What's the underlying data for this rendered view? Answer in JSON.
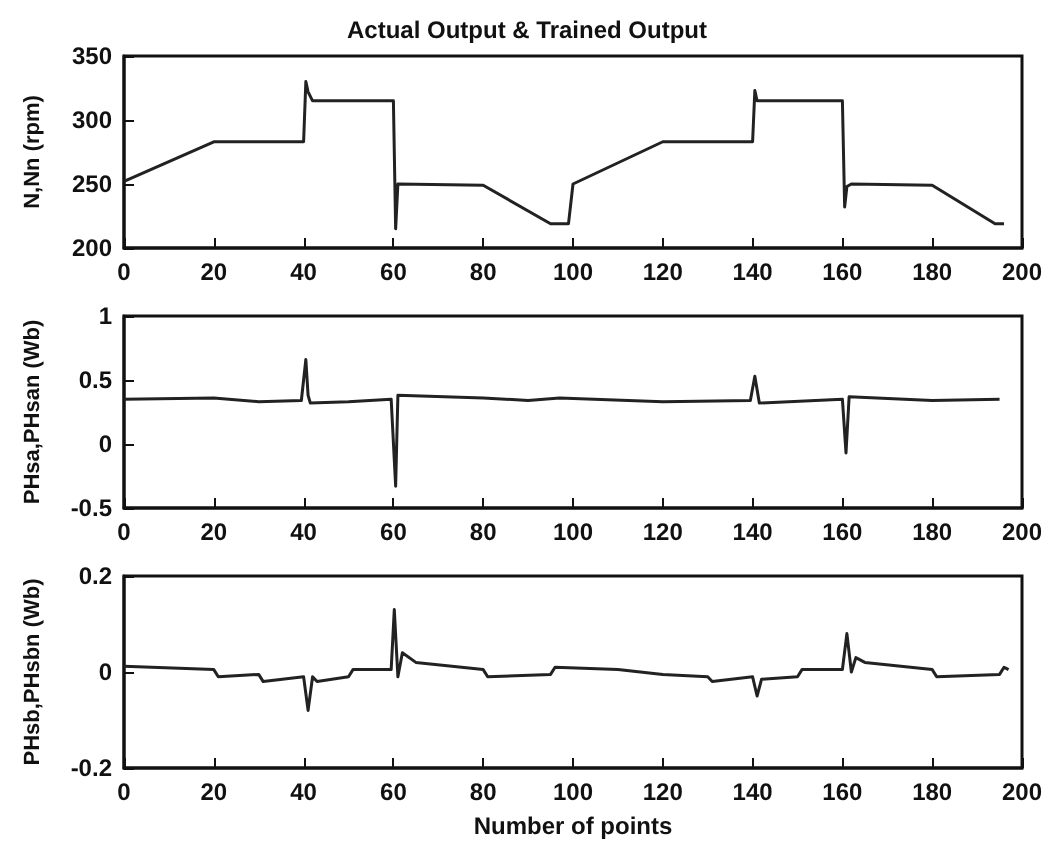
{
  "chart_data": [
    {
      "type": "line",
      "title": "Actual Output & Trained Output",
      "ylabel": "N,Nn (rpm)",
      "color": "#222222",
      "grid": false,
      "xlim": [
        0,
        200
      ],
      "xticks": [
        0,
        20,
        40,
        60,
        80,
        100,
        120,
        140,
        160,
        180,
        200
      ],
      "ylim": [
        200,
        350
      ],
      "yticks": [
        200,
        250,
        300,
        350
      ],
      "x": [
        0,
        20,
        40,
        40.5,
        41,
        42,
        60,
        60.5,
        61,
        80,
        95,
        99,
        100,
        120,
        140,
        140.5,
        141,
        160,
        160.5,
        161,
        162,
        180,
        194,
        196
      ],
      "values": [
        252,
        283,
        283,
        330,
        322,
        315,
        315,
        215,
        250,
        249,
        219,
        219,
        250,
        283,
        283,
        323,
        315,
        315,
        232,
        248,
        250,
        249,
        219,
        219
      ]
    },
    {
      "type": "line",
      "ylabel": "PHsa,PHsan (Wb)",
      "color": "#222222",
      "grid": false,
      "xlim": [
        0,
        200
      ],
      "xticks": [
        0,
        20,
        40,
        60,
        80,
        100,
        120,
        140,
        160,
        180,
        200
      ],
      "ylim": [
        -0.5,
        1
      ],
      "yticks": [
        -0.5,
        0,
        0.5,
        1
      ],
      "x": [
        0,
        20,
        30,
        39.5,
        40.5,
        41,
        41.5,
        50,
        59.5,
        60.5,
        61,
        80,
        90,
        97,
        120,
        139.5,
        140.5,
        141.5,
        160,
        160.8,
        161.5,
        180,
        195
      ],
      "values": [
        0.35,
        0.36,
        0.33,
        0.34,
        0.66,
        0.38,
        0.32,
        0.33,
        0.35,
        -0.33,
        0.38,
        0.36,
        0.34,
        0.36,
        0.33,
        0.34,
        0.53,
        0.32,
        0.35,
        -0.07,
        0.37,
        0.34,
        0.35
      ]
    },
    {
      "type": "line",
      "xlabel": "Number of points",
      "ylabel": "PHsb,PHsbn (Wb)",
      "color": "#222222",
      "grid": false,
      "xlim": [
        0,
        200
      ],
      "xticks": [
        0,
        20,
        40,
        60,
        80,
        100,
        120,
        140,
        160,
        180,
        200
      ],
      "ylim": [
        -0.2,
        0.2
      ],
      "yticks": [
        -0.2,
        0,
        0.2
      ],
      "x": [
        0,
        20,
        21,
        30,
        31,
        40,
        41,
        42,
        43,
        50,
        51,
        59.5,
        60.2,
        61,
        62,
        65,
        80,
        81,
        95,
        96,
        110,
        120,
        130,
        131,
        140,
        141,
        142,
        150,
        151,
        160,
        161,
        162,
        163,
        165,
        180,
        181,
        195,
        196,
        197
      ],
      "values": [
        0.012,
        0.005,
        -0.01,
        -0.005,
        -0.02,
        -0.01,
        -0.08,
        -0.01,
        -0.02,
        -0.01,
        0.005,
        0.005,
        0.13,
        -0.01,
        0.04,
        0.02,
        0.005,
        -0.01,
        -0.005,
        0.01,
        0.005,
        -0.005,
        -0.01,
        -0.02,
        -0.01,
        -0.05,
        -0.015,
        -0.01,
        0.005,
        0.005,
        0.08,
        0,
        0.03,
        0.02,
        0.005,
        -0.01,
        -0.005,
        0.01,
        0.005
      ]
    }
  ]
}
